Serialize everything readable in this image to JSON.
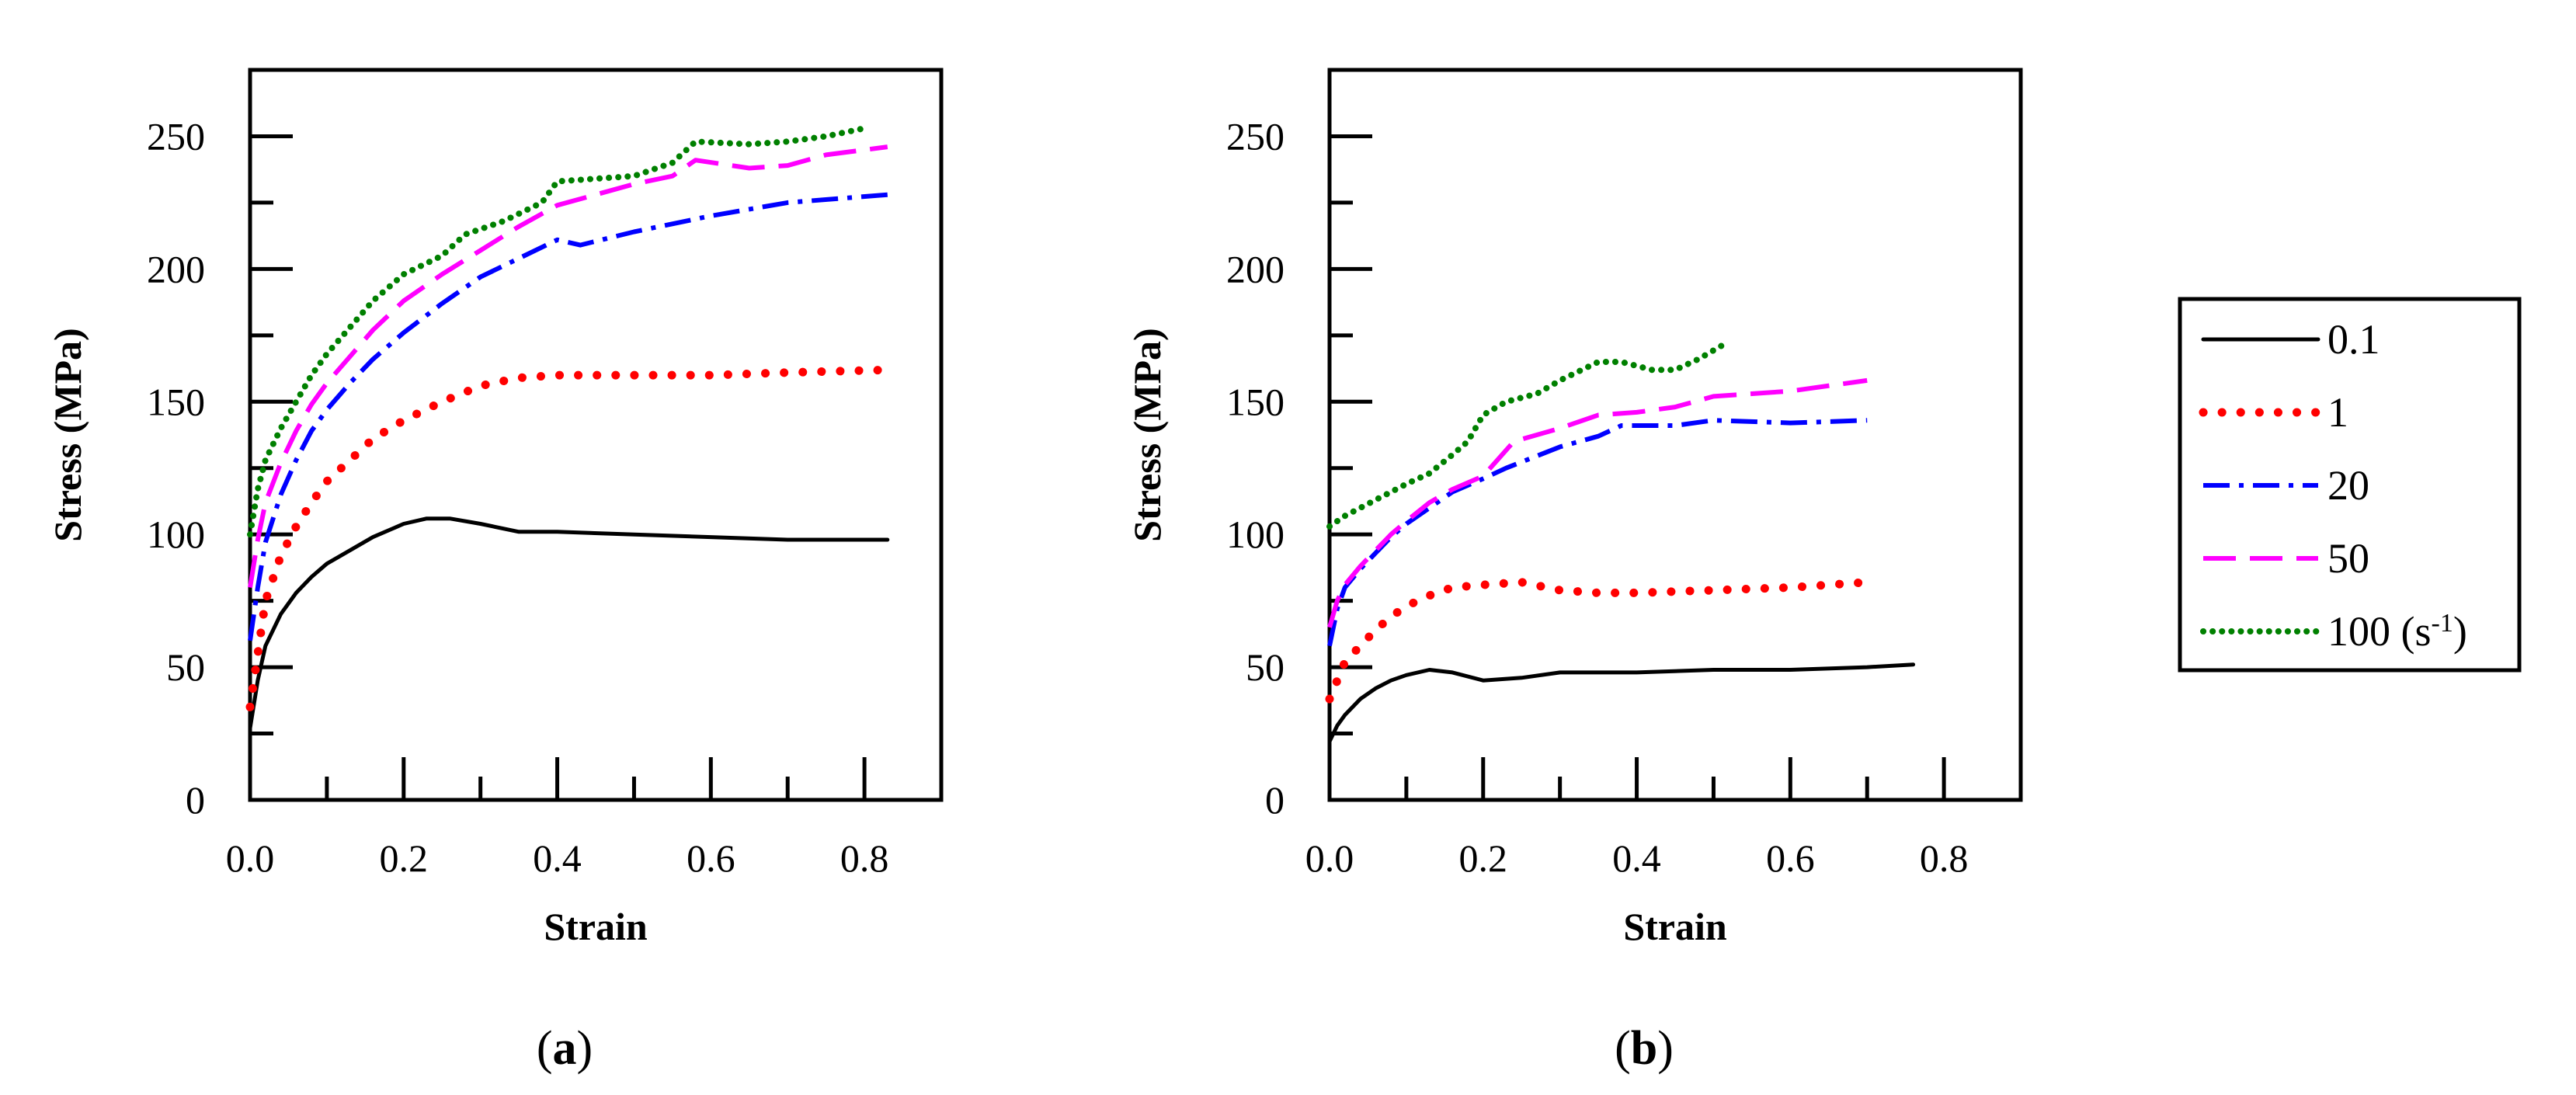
{
  "chart_data": [
    {
      "type": "line",
      "panel_label": "a",
      "xlabel": "Strain",
      "ylabel": "Stress (MPa)",
      "xlim": [
        0.0,
        0.9
      ],
      "ylim": [
        0,
        275
      ],
      "x_ticks": [
        0.0,
        0.2,
        0.4,
        0.6,
        0.8
      ],
      "x_tick_labels": [
        "0.0",
        "0.2",
        "0.4",
        "0.6",
        "0.8"
      ],
      "y_ticks": [
        0,
        50,
        100,
        150,
        200,
        250
      ],
      "y_tick_labels": [
        "0",
        "50",
        "100",
        "150",
        "200",
        "250"
      ],
      "series": [
        {
          "name": "0.1",
          "color": "#000000",
          "style": "solid",
          "x": [
            0,
            0.01,
            0.02,
            0.04,
            0.06,
            0.08,
            0.1,
            0.13,
            0.16,
            0.2,
            0.23,
            0.26,
            0.3,
            0.35,
            0.4,
            0.5,
            0.6,
            0.7,
            0.83
          ],
          "y": [
            27,
            45,
            58,
            70,
            78,
            84,
            89,
            94,
            99,
            104,
            106,
            106,
            104,
            101,
            101,
            100,
            99,
            98,
            98
          ]
        },
        {
          "name": "1",
          "color": "#ff0000",
          "style": "dotted",
          "x": [
            0,
            0.01,
            0.02,
            0.04,
            0.06,
            0.08,
            0.1,
            0.13,
            0.16,
            0.2,
            0.25,
            0.3,
            0.35,
            0.4,
            0.45,
            0.5,
            0.55,
            0.6,
            0.7,
            0.83
          ],
          "y": [
            35,
            55,
            75,
            92,
            103,
            112,
            120,
            128,
            136,
            143,
            150,
            156,
            159,
            160,
            160,
            160,
            160,
            160,
            161,
            162
          ]
        },
        {
          "name": "20",
          "color": "#0000ff",
          "style": "dashdot",
          "x": [
            0,
            0.01,
            0.02,
            0.04,
            0.06,
            0.08,
            0.1,
            0.13,
            0.16,
            0.2,
            0.25,
            0.3,
            0.35,
            0.4,
            0.43,
            0.5,
            0.6,
            0.7,
            0.83
          ],
          "y": [
            60,
            80,
            97,
            115,
            128,
            139,
            147,
            157,
            166,
            176,
            187,
            197,
            204,
            211,
            209,
            214,
            220,
            225,
            228
          ]
        },
        {
          "name": "50",
          "color": "#ff00ff",
          "style": "dashed",
          "x": [
            0,
            0.01,
            0.02,
            0.04,
            0.06,
            0.08,
            0.1,
            0.13,
            0.16,
            0.2,
            0.25,
            0.3,
            0.35,
            0.4,
            0.45,
            0.5,
            0.55,
            0.58,
            0.65,
            0.7,
            0.75,
            0.83
          ],
          "y": [
            80,
            98,
            112,
            127,
            139,
            149,
            157,
            167,
            177,
            188,
            198,
            207,
            216,
            224,
            228,
            232,
            235,
            241,
            238,
            239,
            243,
            246
          ]
        },
        {
          "name": "100 (s-1)",
          "color": "#008000",
          "style": "dense-dotted",
          "x": [
            0,
            0.01,
            0.02,
            0.04,
            0.06,
            0.08,
            0.1,
            0.13,
            0.16,
            0.2,
            0.25,
            0.28,
            0.33,
            0.38,
            0.4,
            0.45,
            0.5,
            0.55,
            0.58,
            0.65,
            0.7,
            0.75,
            0.8
          ],
          "y": [
            100,
            117,
            128,
            140,
            150,
            160,
            168,
            178,
            188,
            198,
            205,
            213,
            218,
            225,
            233,
            234,
            235,
            240,
            248,
            247,
            248,
            250,
            253
          ]
        }
      ]
    },
    {
      "type": "line",
      "panel_label": "b",
      "xlabel": "Strain",
      "ylabel": "Stress (MPa)",
      "xlim": [
        0.0,
        0.9
      ],
      "ylim": [
        0,
        275
      ],
      "x_ticks": [
        0.0,
        0.2,
        0.4,
        0.6,
        0.8
      ],
      "x_tick_labels": [
        "0.0",
        "0.2",
        "0.4",
        "0.6",
        "0.8"
      ],
      "y_ticks": [
        0,
        50,
        100,
        150,
        200,
        250
      ],
      "y_tick_labels": [
        "0",
        "50",
        "100",
        "150",
        "200",
        "250"
      ],
      "series": [
        {
          "name": "0.1",
          "color": "#000000",
          "style": "solid",
          "x": [
            0,
            0.01,
            0.02,
            0.04,
            0.06,
            0.08,
            0.1,
            0.13,
            0.16,
            0.2,
            0.25,
            0.3,
            0.4,
            0.5,
            0.6,
            0.7,
            0.76
          ],
          "y": [
            22,
            28,
            32,
            38,
            42,
            45,
            47,
            49,
            48,
            45,
            46,
            48,
            48,
            49,
            49,
            50,
            51
          ]
        },
        {
          "name": "1",
          "color": "#ff0000",
          "style": "dotted",
          "x": [
            0,
            0.01,
            0.02,
            0.04,
            0.06,
            0.08,
            0.1,
            0.13,
            0.16,
            0.2,
            0.25,
            0.3,
            0.35,
            0.4,
            0.5,
            0.6,
            0.7
          ],
          "y": [
            38,
            45,
            52,
            58,
            64,
            69,
            73,
            77,
            80,
            81,
            82,
            79,
            78,
            78,
            79,
            80,
            82
          ]
        },
        {
          "name": "20",
          "color": "#0000ff",
          "style": "dashdot",
          "x": [
            0,
            0.01,
            0.02,
            0.04,
            0.06,
            0.08,
            0.1,
            0.13,
            0.16,
            0.2,
            0.23,
            0.3,
            0.35,
            0.38,
            0.45,
            0.5,
            0.6,
            0.7
          ],
          "y": [
            58,
            72,
            80,
            87,
            93,
            99,
            104,
            110,
            116,
            121,
            125,
            133,
            137,
            141,
            141,
            143,
            142,
            143
          ]
        },
        {
          "name": "50",
          "color": "#ff00ff",
          "style": "dashed",
          "x": [
            0,
            0.01,
            0.02,
            0.04,
            0.06,
            0.08,
            0.1,
            0.13,
            0.16,
            0.2,
            0.24,
            0.3,
            0.35,
            0.4,
            0.45,
            0.5,
            0.6,
            0.7
          ],
          "y": [
            65,
            75,
            81,
            88,
            94,
            100,
            105,
            112,
            117,
            122,
            135,
            140,
            145,
            146,
            148,
            152,
            154,
            158
          ]
        },
        {
          "name": "100 (s-1)",
          "color": "#008000",
          "style": "dense-dotted",
          "x": [
            0,
            0.02,
            0.04,
            0.06,
            0.08,
            0.1,
            0.13,
            0.16,
            0.18,
            0.2,
            0.23,
            0.27,
            0.3,
            0.35,
            0.38,
            0.42,
            0.45,
            0.48,
            0.51
          ],
          "y": [
            103,
            107,
            110,
            113,
            116,
            119,
            123,
            130,
            135,
            145,
            150,
            153,
            158,
            165,
            165,
            162,
            162,
            166,
            171
          ]
        }
      ]
    }
  ],
  "legend": {
    "entries": [
      {
        "label": "0.1",
        "color": "#000000",
        "style": "solid"
      },
      {
        "label": "1",
        "color": "#ff0000",
        "style": "dotted"
      },
      {
        "label": "20",
        "color": "#0000ff",
        "style": "dashdot"
      },
      {
        "label": "50",
        "color": "#ff00ff",
        "style": "dashed"
      },
      {
        "label": "100 (s",
        "sup": "-1",
        "suffix": ")",
        "color": "#008000",
        "style": "dense-dotted"
      }
    ]
  }
}
